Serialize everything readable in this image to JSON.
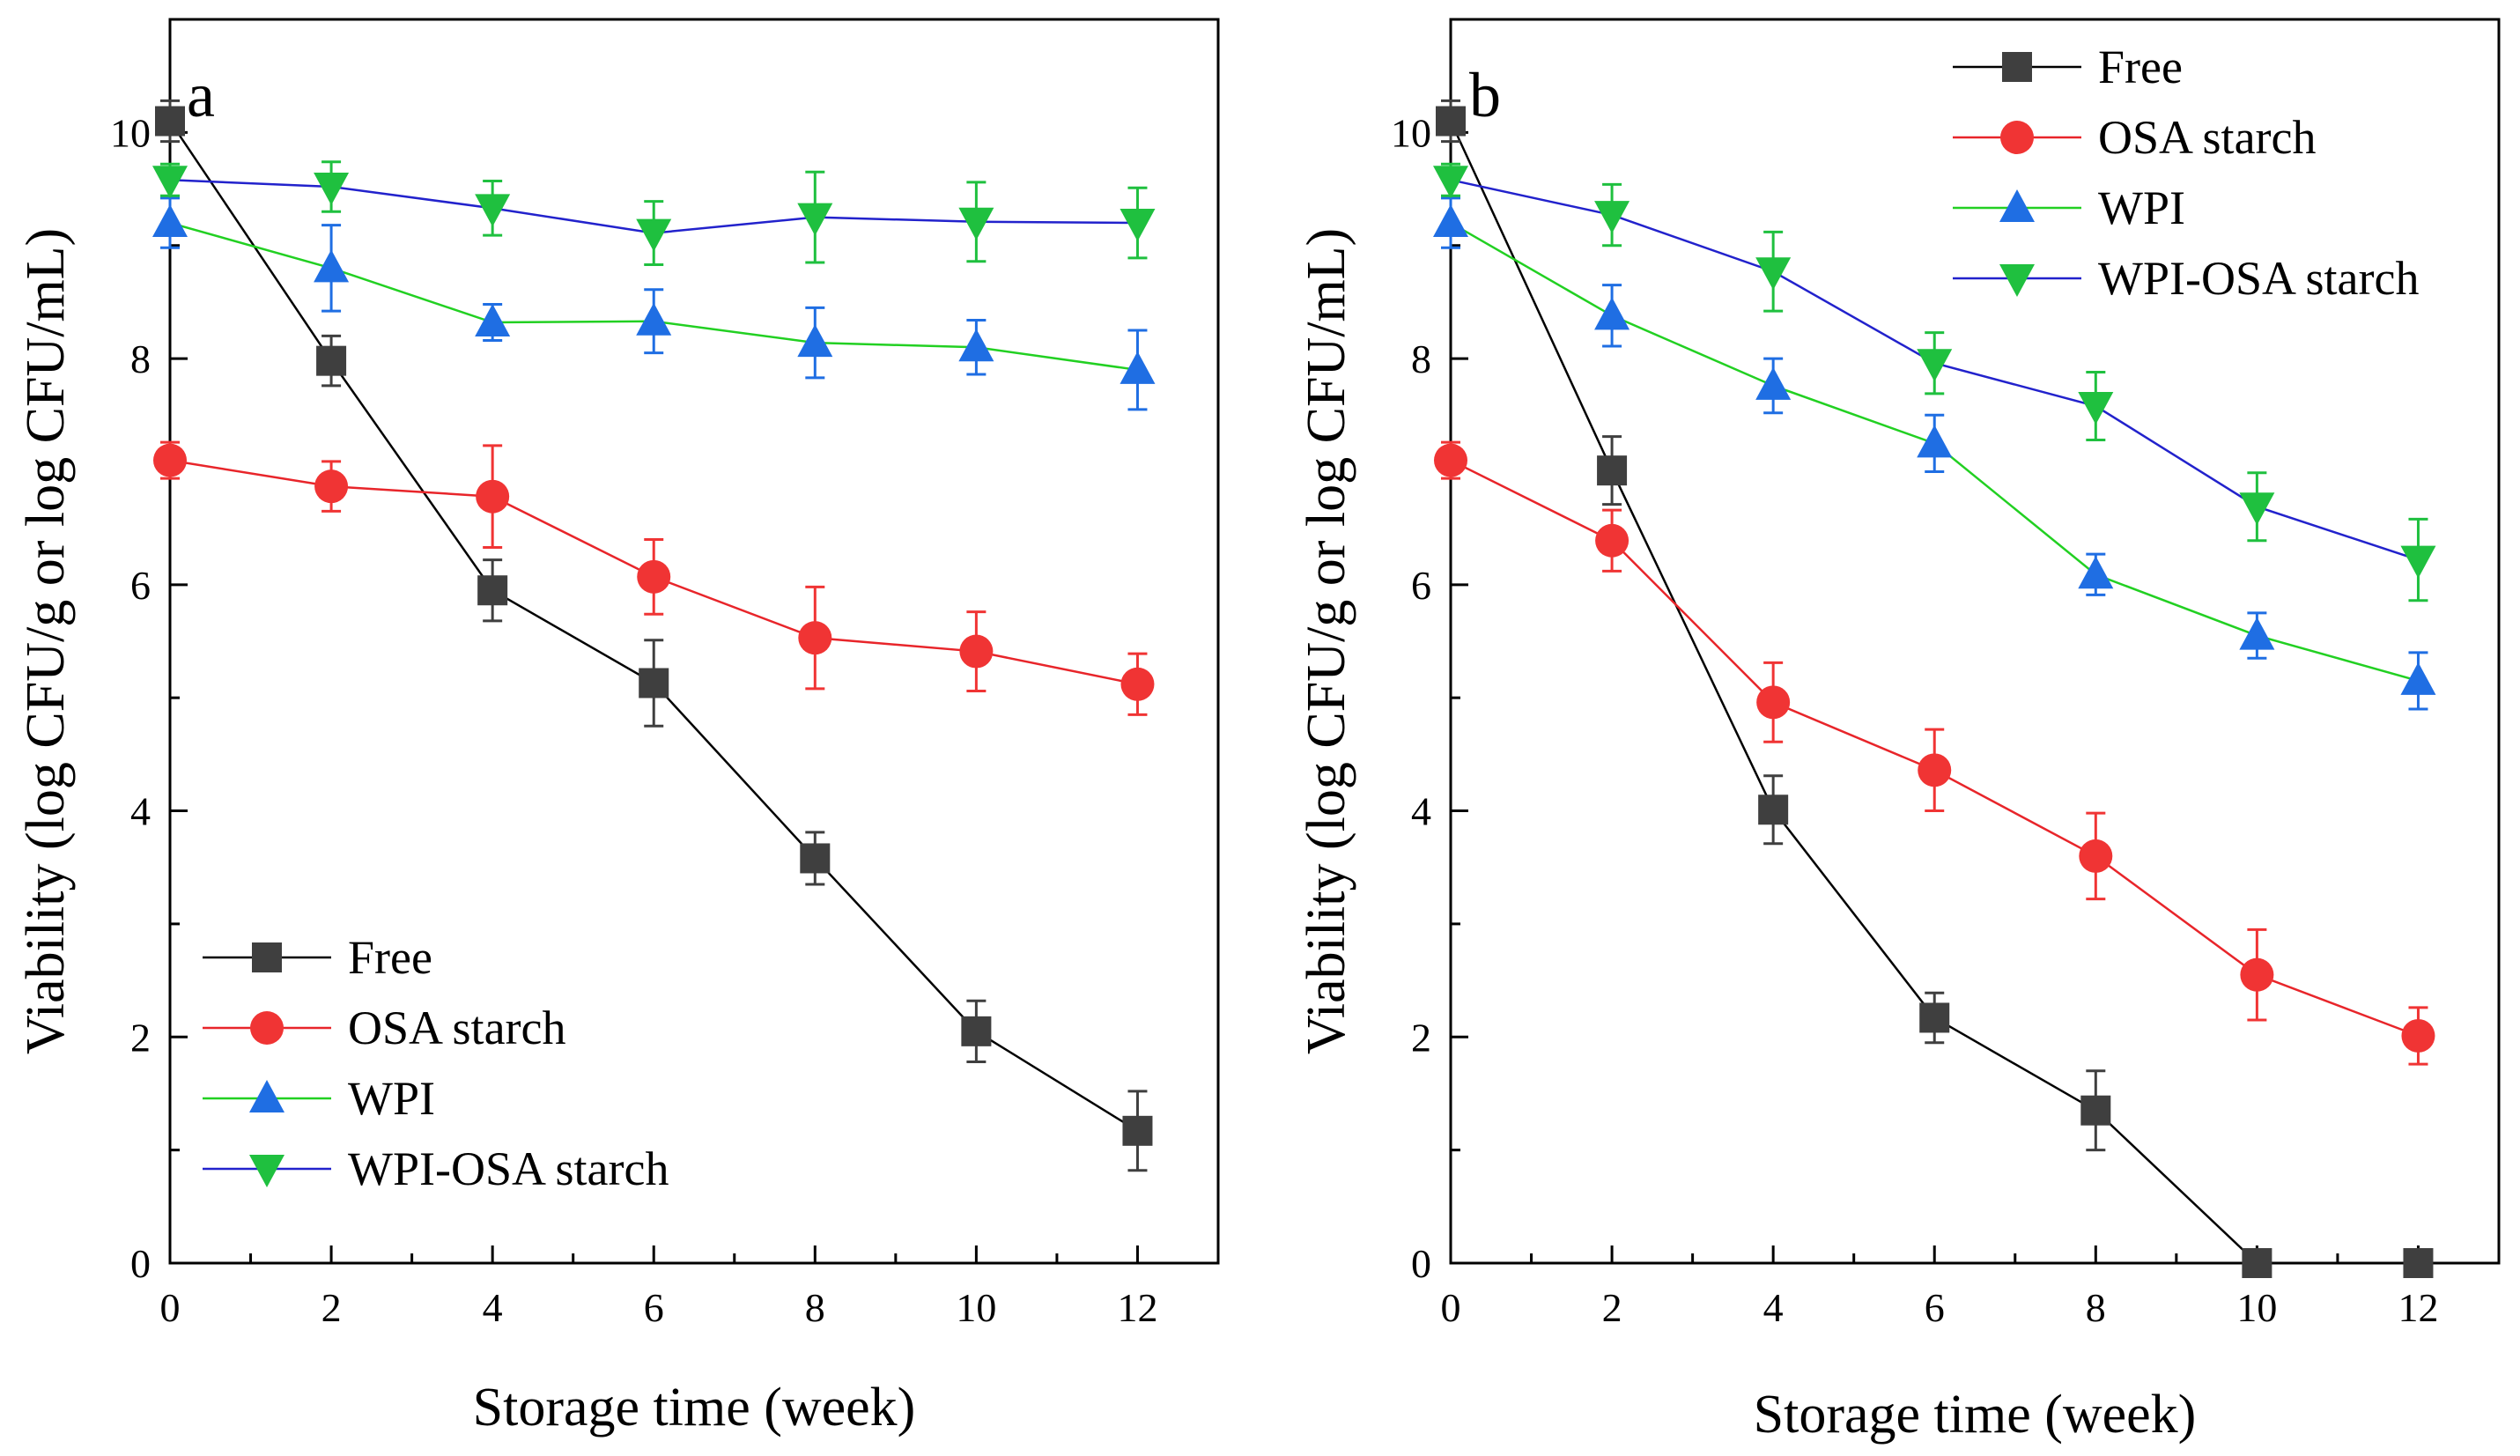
{
  "chart_data": [
    {
      "type": "line",
      "panel_label": "a",
      "xlabel": "Storage time (week)",
      "ylabel": "Viability (log CFU/g or log CFU/mL)",
      "xlim": [
        0,
        13
      ],
      "ylim": [
        0,
        11
      ],
      "xticks": [
        0,
        2,
        4,
        6,
        8,
        10,
        12
      ],
      "yticks": [
        0,
        2,
        4,
        6,
        8,
        10
      ],
      "legend_position": "bottom-left",
      "x": [
        0,
        2,
        4,
        6,
        8,
        10,
        12
      ],
      "series": [
        {
          "name": "Free",
          "color": "#3f3f3f",
          "line_color": "#000000",
          "marker": "square",
          "values": [
            10.1,
            7.98,
            5.95,
            5.13,
            3.58,
            2.05,
            1.17
          ],
          "errors": [
            0.18,
            0.22,
            0.27,
            0.38,
            0.23,
            0.27,
            0.35
          ]
        },
        {
          "name": "OSA starch",
          "color": "#f03434",
          "line_color": "#e8252a",
          "marker": "circle",
          "values": [
            7.1,
            6.87,
            6.78,
            6.07,
            5.53,
            5.41,
            5.12
          ],
          "errors": [
            0.16,
            0.22,
            0.45,
            0.33,
            0.45,
            0.35,
            0.27
          ]
        },
        {
          "name": "WPI",
          "color": "#1f6ee3",
          "line_color": "#22d022",
          "marker": "triangle-up",
          "values": [
            9.2,
            8.8,
            8.32,
            8.33,
            8.14,
            8.1,
            7.9
          ],
          "errors": [
            0.22,
            0.38,
            0.16,
            0.28,
            0.31,
            0.24,
            0.35
          ]
        },
        {
          "name": "WPI-OSA starch",
          "color": "#1fc03f",
          "line_color": "#2222cc",
          "marker": "triangle-down",
          "values": [
            9.58,
            9.52,
            9.33,
            9.11,
            9.25,
            9.21,
            9.2
          ],
          "errors": [
            0.14,
            0.22,
            0.24,
            0.28,
            0.4,
            0.35,
            0.31
          ]
        }
      ]
    },
    {
      "type": "line",
      "panel_label": "b",
      "xlabel": "Storage time (week)",
      "ylabel": "Viability (log CFU/g or log CFU/mL)",
      "xlim": [
        0,
        13
      ],
      "ylim": [
        0,
        11
      ],
      "xticks": [
        0,
        2,
        4,
        6,
        8,
        10,
        12
      ],
      "yticks": [
        0,
        2,
        4,
        6,
        8,
        10
      ],
      "legend_position": "top-right",
      "x": [
        0,
        2,
        4,
        6,
        8,
        10,
        12
      ],
      "series": [
        {
          "name": "Free",
          "color": "#3f3f3f",
          "line_color": "#000000",
          "marker": "square",
          "values": [
            10.1,
            7.01,
            4.01,
            2.17,
            1.35,
            0.0,
            0.0
          ],
          "errors": [
            0.18,
            0.3,
            0.3,
            0.22,
            0.35,
            0.0,
            0.0
          ]
        },
        {
          "name": "OSA starch",
          "color": "#f03434",
          "line_color": "#e8252a",
          "marker": "circle",
          "values": [
            7.1,
            6.39,
            4.96,
            4.36,
            3.6,
            2.55,
            2.01
          ],
          "errors": [
            0.16,
            0.27,
            0.35,
            0.36,
            0.38,
            0.4,
            0.25
          ]
        },
        {
          "name": "WPI",
          "color": "#1f6ee3",
          "line_color": "#22d022",
          "marker": "triangle-up",
          "values": [
            9.2,
            8.38,
            7.76,
            7.25,
            6.09,
            5.55,
            5.15
          ],
          "errors": [
            0.22,
            0.27,
            0.24,
            0.25,
            0.18,
            0.2,
            0.25
          ]
        },
        {
          "name": "WPI-OSA starch",
          "color": "#1fc03f",
          "line_color": "#2222cc",
          "marker": "triangle-down",
          "values": [
            9.58,
            9.27,
            8.77,
            7.96,
            7.58,
            6.69,
            6.22
          ],
          "errors": [
            0.14,
            0.27,
            0.35,
            0.27,
            0.3,
            0.3,
            0.36
          ]
        }
      ]
    }
  ]
}
